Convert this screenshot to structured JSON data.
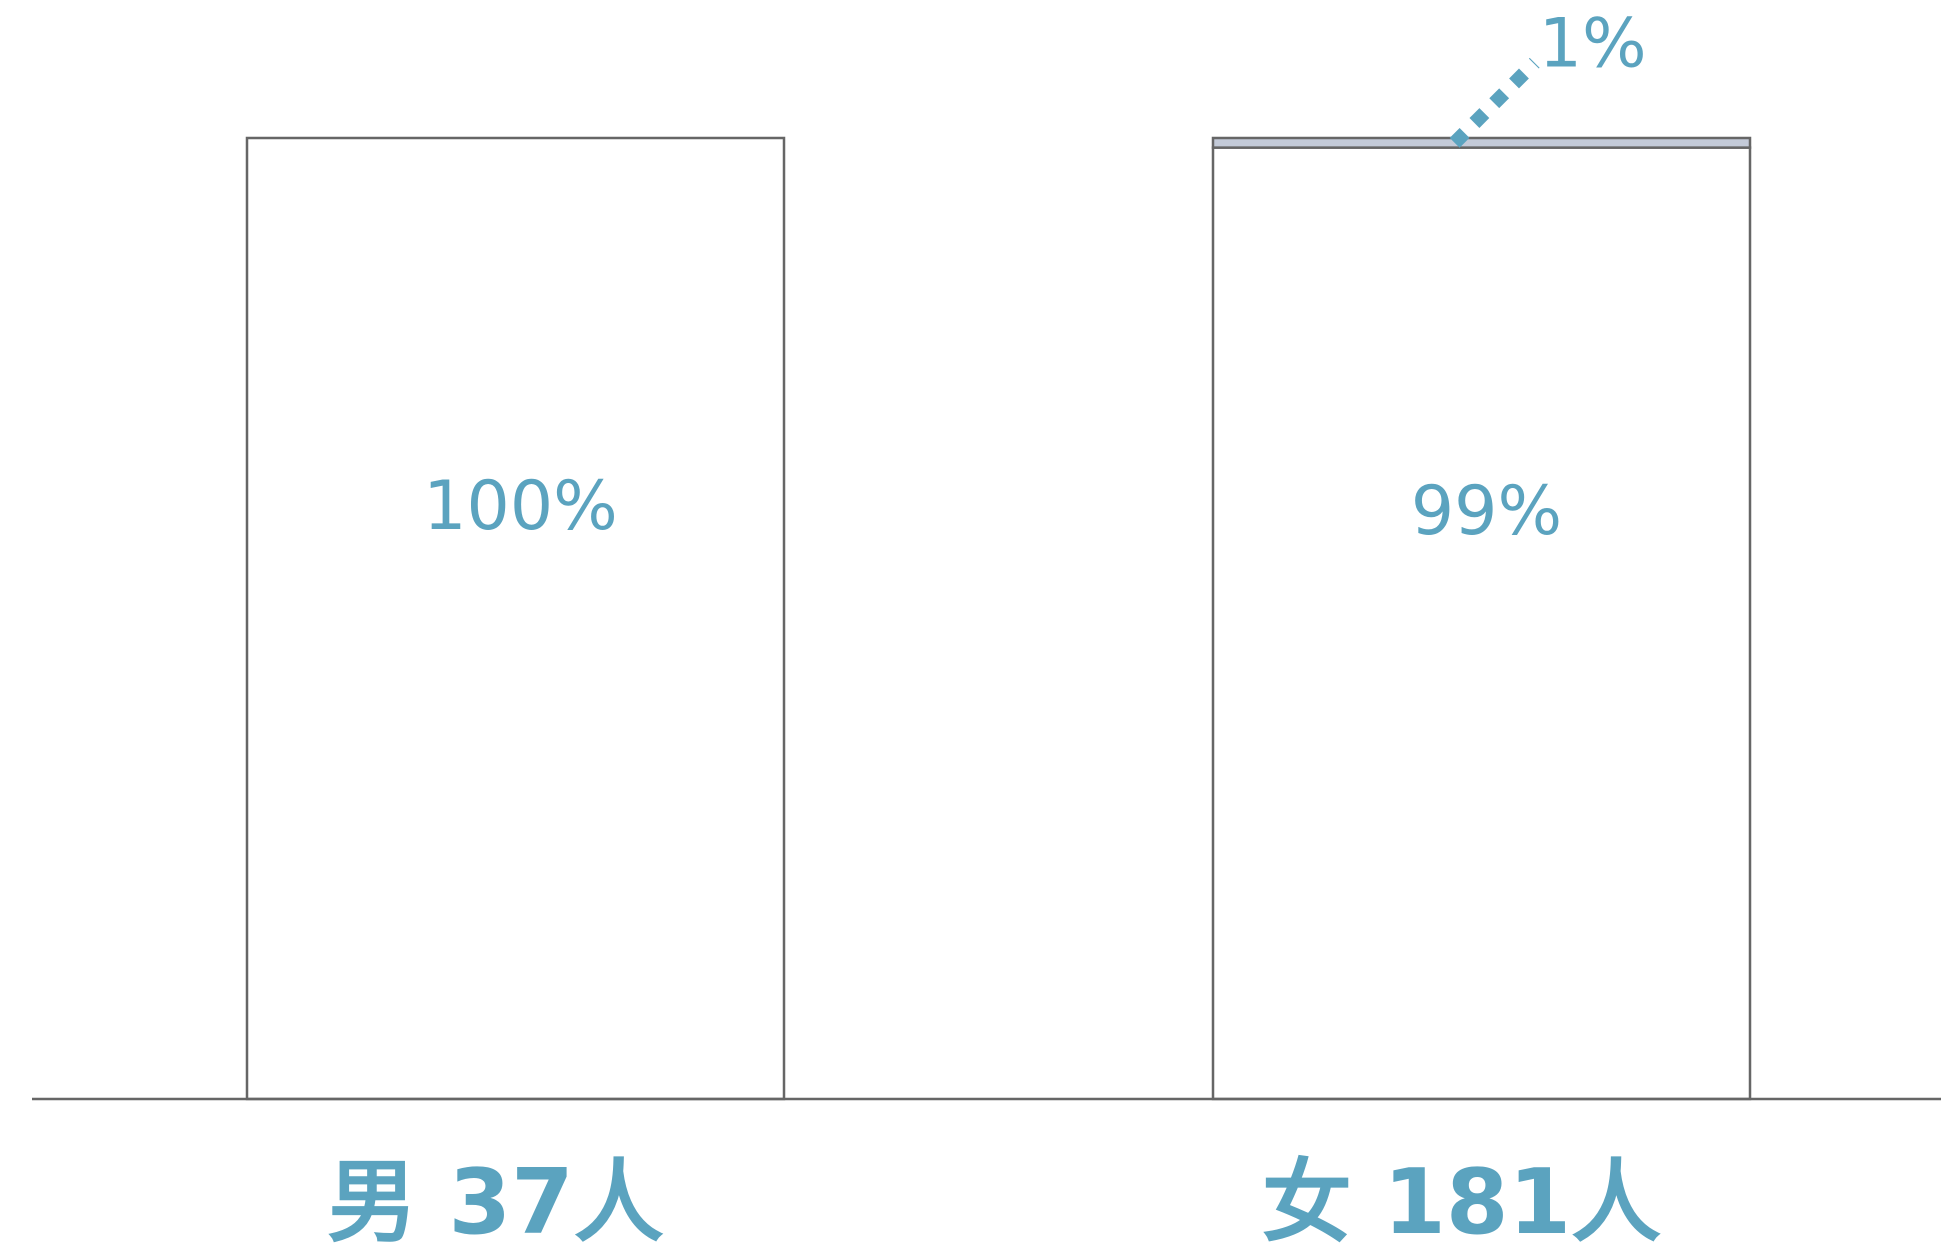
{
  "chart_data": {
    "type": "bar",
    "stacked": true,
    "categories": [
      "男 37人",
      "女 181人"
    ],
    "series": [
      {
        "values": [
          100,
          99
        ],
        "labels": [
          "100%",
          "99%"
        ],
        "color": "#ffffff"
      },
      {
        "values": [
          0,
          1
        ],
        "labels": [
          "",
          "1%"
        ],
        "color": "#c3cad8"
      }
    ],
    "ylim": [
      0,
      100
    ],
    "grid": false,
    "colors": {
      "text": "#5ba3bf",
      "stroke": "#666666",
      "small_segment": "#c3cad8"
    }
  }
}
